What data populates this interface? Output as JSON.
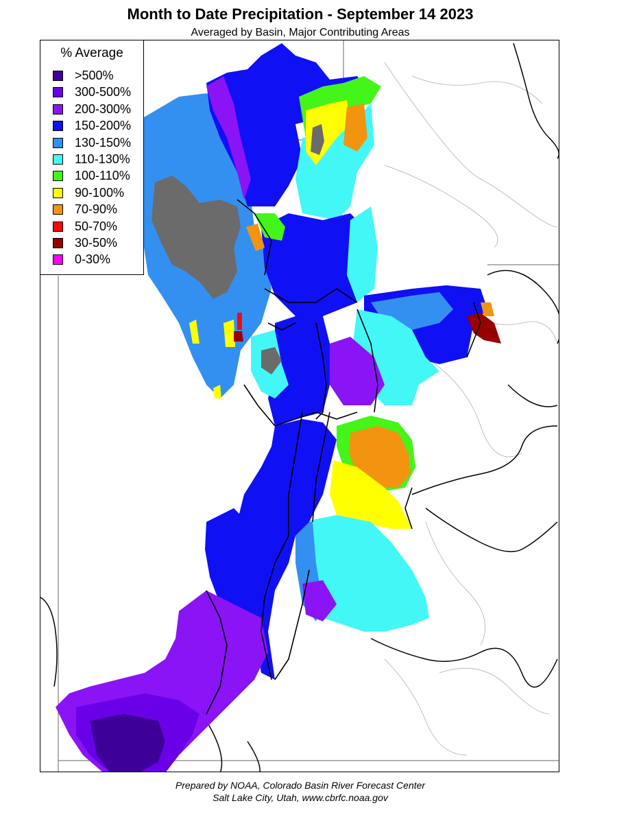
{
  "title": "Month to Date Precipitation - September 14 2023",
  "subtitle": "Averaged by Basin, Major Contributing Areas",
  "legend": {
    "title": "% Average",
    "items": [
      {
        "label": ">500%",
        "color": "#3d0099"
      },
      {
        "label": "300-500%",
        "color": "#6a00e8"
      },
      {
        "label": "200-300%",
        "color": "#8a14f5"
      },
      {
        "label": "150-200%",
        "color": "#1010f5"
      },
      {
        "label": "130-150%",
        "color": "#3390f0"
      },
      {
        "label": "110-130%",
        "color": "#44f7f7"
      },
      {
        "label": "100-110%",
        "color": "#44f51a"
      },
      {
        "label": "90-100%",
        "color": "#ffff00"
      },
      {
        "label": "70-90%",
        "color": "#f29410"
      },
      {
        "label": "50-70%",
        "color": "#f50a0a"
      },
      {
        "label": "30-50%",
        "color": "#960000"
      },
      {
        "label": "0-30%",
        "color": "#ff00ff"
      }
    ]
  },
  "colors": {
    "lake": "#6b6b6b",
    "river": "#a8a8a8",
    "boundary": "#000000"
  },
  "footer": {
    "line1": "Prepared by NOAA, Colorado Basin River Forecast Center",
    "line2": "Salt Lake City, Utah, www.cbrfc.noaa.gov"
  }
}
